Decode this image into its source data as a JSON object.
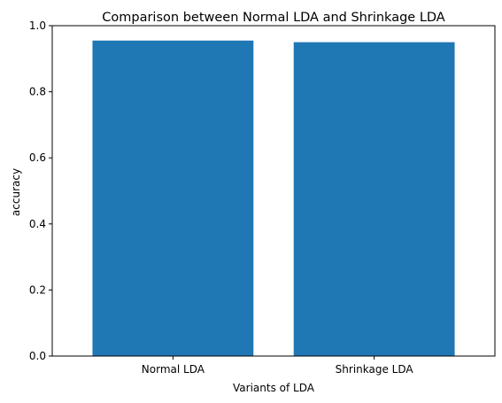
{
  "chart_data": {
    "type": "bar",
    "title": "Comparison between Normal LDA and Shrinkage LDA",
    "xlabel": "Variants of LDA",
    "ylabel": "accuracy",
    "categories": [
      "Normal LDA",
      "Shrinkage LDA"
    ],
    "values": [
      0.955,
      0.95
    ],
    "ylim": [
      0,
      1.0
    ],
    "yticks": [
      0.0,
      0.2,
      0.4,
      0.6,
      0.8,
      1.0
    ],
    "ytick_labels": [
      "0.0",
      "0.2",
      "0.4",
      "0.6",
      "0.8",
      "1.0"
    ],
    "grid": false,
    "bar_color": "#1f77b4"
  }
}
